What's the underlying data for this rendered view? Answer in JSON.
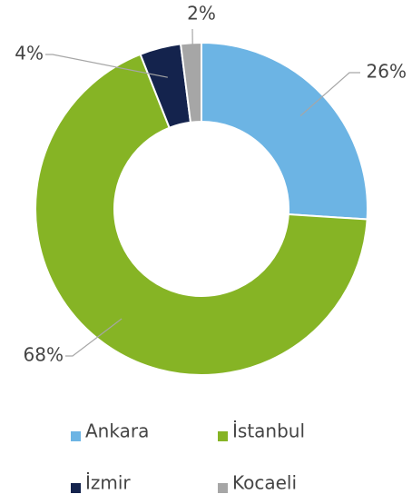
{
  "chart_data": {
    "type": "donut",
    "categories": [
      "Ankara",
      "İstanbul",
      "İzmir",
      "Kocaeli"
    ],
    "values": [
      26,
      68,
      4,
      2
    ],
    "value_labels": [
      "26%",
      "68%",
      "4%",
      "2%"
    ],
    "colors": [
      "#6cb4e4",
      "#86b425",
      "#14234d",
      "#a6a6a6"
    ],
    "legend": "bottom"
  }
}
